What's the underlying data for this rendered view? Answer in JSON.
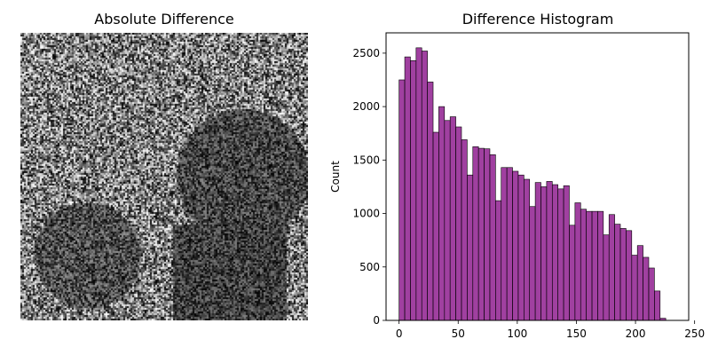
{
  "image_panel": {
    "title": "Absolute Difference"
  },
  "chart_data": {
    "type": "bar",
    "title": "Difference Histogram",
    "xlabel": "",
    "ylabel": "Count",
    "bar_color": "#800080",
    "bar_alpha": 0.75,
    "edge_color": "#000000",
    "xlim": [
      -11,
      245
    ],
    "ylim": [
      0,
      2690
    ],
    "xticks": [
      0,
      50,
      100,
      150,
      200,
      250
    ],
    "yticks": [
      0,
      500,
      1000,
      1500,
      2000,
      2500
    ],
    "bin_edges": [
      0,
      4.8,
      9.6,
      14.4,
      19.2,
      24.0,
      28.8,
      33.6,
      38.4,
      43.2,
      48.0,
      52.8,
      57.6,
      62.4,
      67.2,
      72.0,
      76.8,
      81.6,
      86.4,
      91.2,
      96.0,
      100.8,
      105.6,
      110.4,
      115.2,
      120.0,
      124.8,
      129.6,
      134.4,
      139.2,
      144.0,
      148.8,
      153.6,
      158.4,
      163.2,
      168.0,
      172.8,
      177.6,
      182.4,
      187.2,
      192.0,
      196.8,
      201.6,
      206.4,
      211.2,
      216.0,
      220.8,
      225.6,
      230.4,
      235.2,
      240.0
    ],
    "values": [
      2250,
      2465,
      2430,
      2550,
      2520,
      2230,
      1760,
      2000,
      1870,
      1905,
      1810,
      1690,
      1360,
      1625,
      1610,
      1605,
      1550,
      1120,
      1430,
      1430,
      1395,
      1360,
      1320,
      1065,
      1290,
      1250,
      1300,
      1270,
      1230,
      1260,
      890,
      1100,
      1040,
      1020,
      1020,
      1020,
      800,
      990,
      900,
      860,
      840,
      610,
      700,
      590,
      490,
      275,
      20,
      0,
      0,
      0
    ]
  }
}
